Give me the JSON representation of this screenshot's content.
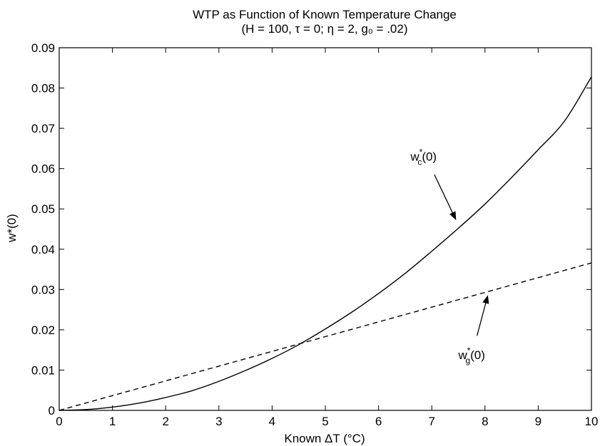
{
  "chart_data": {
    "type": "line",
    "title": "WTP as Function of Known Temperature Change",
    "subtitle": "(H = 100, τ = 0; η = 2, g₀ = .02)",
    "xlabel": "Known ΔT (°C)",
    "ylabel": "w*(0)",
    "xlim": [
      0,
      10
    ],
    "ylim": [
      0,
      0.09
    ],
    "grid": false,
    "legend": "none",
    "x_ticks": [
      "0",
      "1",
      "2",
      "3",
      "4",
      "5",
      "6",
      "7",
      "8",
      "9",
      "10"
    ],
    "y_ticks": [
      "0",
      "0.01",
      "0.02",
      "0.03",
      "0.04",
      "0.05",
      "0.06",
      "0.07",
      "0.08",
      "0.09"
    ],
    "x": [
      0,
      0.5,
      1,
      1.5,
      2,
      2.5,
      3,
      3.5,
      4,
      4.5,
      5,
      5.5,
      6,
      6.5,
      7,
      7.5,
      8,
      8.5,
      9,
      9.5,
      10
    ],
    "series": [
      {
        "name": "w_c*(0)",
        "style": "solid",
        "values": [
          0,
          0.0002,
          0.0008,
          0.0018,
          0.0032,
          0.0049,
          0.0072,
          0.0099,
          0.0129,
          0.0163,
          0.0202,
          0.0244,
          0.029,
          0.034,
          0.0395,
          0.0452,
          0.0512,
          0.0578,
          0.0647,
          0.0719,
          0.0828
        ]
      },
      {
        "name": "w_g*(0)",
        "style": "dashed",
        "values": [
          0,
          0.00183,
          0.00366,
          0.00549,
          0.00732,
          0.00915,
          0.01098,
          0.01281,
          0.01464,
          0.01647,
          0.0183,
          0.02013,
          0.02196,
          0.02379,
          0.02562,
          0.02745,
          0.02928,
          0.03111,
          0.03294,
          0.03477,
          0.0366
        ]
      }
    ],
    "annotations": [
      {
        "series": 0,
        "text": "w",
        "sup": "*",
        "sub": "c",
        "tail": "(0)",
        "label_at": [
          6.6,
          0.062
        ],
        "arrow_from": [
          7.05,
          0.0585
        ],
        "arrow_to": [
          7.45,
          0.0474
        ]
      },
      {
        "series": 1,
        "text": "w",
        "sup": "*",
        "sub": "g",
        "tail": "(0)",
        "label_at": [
          7.5,
          0.0127
        ],
        "arrow_from": [
          7.85,
          0.0185
        ],
        "arrow_to": [
          8.05,
          0.0284
        ]
      }
    ]
  }
}
